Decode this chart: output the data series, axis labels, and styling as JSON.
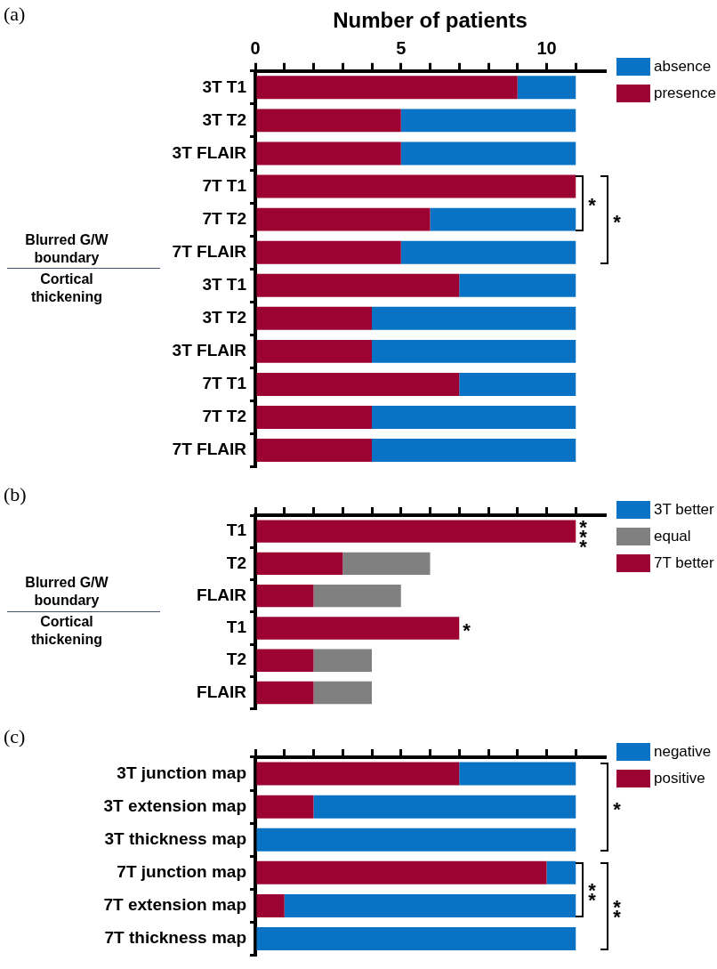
{
  "chart_data": [
    {
      "type": "bar",
      "orientation": "horizontal",
      "stacked": true,
      "xlabel": "Number of patients",
      "legend": "top right",
      "grid": false,
      "categories": [
        "3T T1",
        "3T T2",
        "3T FLAIR",
        "7T T1",
        "7T T2",
        "7T FLAIR",
        "3T T1",
        "3T T2",
        "3T FLAIR",
        "7T T1",
        "7T T2",
        "7T FLAIR"
      ],
      "series": [
        {
          "name": "presence",
          "color": "#9c0333",
          "values": [
            9,
            5,
            5,
            11,
            6,
            5,
            7,
            4,
            4,
            7,
            4,
            4
          ]
        },
        {
          "name": "absence",
          "color": "#0873c4",
          "values": [
            2,
            6,
            6,
            0,
            5,
            6,
            4,
            7,
            7,
            4,
            7,
            7
          ]
        }
      ],
      "xlim": [
        0,
        12
      ],
      "xticks": [
        0,
        {
          "value": 1,
          "label": null
        },
        {
          "value": 2,
          "label": null
        },
        {
          "value": 3,
          "label": null
        },
        {
          "value": 4,
          "label": null
        },
        5,
        {
          "value": 6,
          "label": null
        },
        {
          "value": 7,
          "label": null
        },
        {
          "value": 8,
          "label": null
        },
        {
          "value": 9,
          "label": null
        },
        10,
        {
          "value": 11,
          "label": null
        }
      ],
      "annotations": [
        "(a)",
        "Blurred G/W boundary",
        "Cortical thickening",
        "*",
        "*"
      ]
    },
    {
      "type": "bar",
      "orientation": "horizontal",
      "stacked": true,
      "legend": "top right",
      "grid": false,
      "tick_labels": "y",
      "categories": [
        "T1",
        "T2",
        "FLAIR",
        "T1",
        "T2",
        "FLAIR"
      ],
      "series": [
        {
          "name": "7T better",
          "color": "#9c0333",
          "values": [
            11,
            3,
            2,
            7,
            2,
            2
          ]
        },
        {
          "name": "equal",
          "color": "#808080",
          "values": [
            0,
            3,
            3,
            0,
            2,
            2
          ]
        },
        {
          "name": "3T better",
          "color": "#0873c4",
          "values": [
            0,
            0,
            0,
            0,
            0,
            0
          ]
        }
      ],
      "xlim": [
        0,
        12
      ],
      "xticks": [
        0,
        {
          "value": 1,
          "label": null
        },
        {
          "value": 2,
          "label": null
        },
        {
          "value": 3,
          "label": null
        },
        {
          "value": 4,
          "label": null
        },
        5,
        {
          "value": 6,
          "label": null
        },
        {
          "value": 7,
          "label": null
        },
        {
          "value": 8,
          "label": null
        },
        {
          "value": 9,
          "label": null
        },
        10,
        {
          "value": 11,
          "label": null
        }
      ],
      "annotations": [
        "(b)",
        "Blurred G/W boundary",
        "Cortical thickening",
        "***",
        "*"
      ]
    },
    {
      "type": "bar",
      "orientation": "horizontal",
      "stacked": true,
      "legend": "top right",
      "grid": false,
      "tick_labels": "y",
      "categories": [
        "3T junction map",
        "3T extension map",
        "3T thickness map",
        "7T junction map",
        "7T extension map",
        "7T thickness map"
      ],
      "series": [
        {
          "name": "positive",
          "color": "#9c0333",
          "values": [
            7,
            2,
            0,
            10,
            1,
            0
          ]
        },
        {
          "name": "negative",
          "color": "#0873c4",
          "values": [
            4,
            9,
            11,
            1,
            10,
            11
          ]
        }
      ],
      "xlim": [
        0,
        12
      ],
      "xticks": [
        0,
        {
          "value": 1,
          "label": null
        },
        {
          "value": 2,
          "label": null
        },
        {
          "value": 3,
          "label": null
        },
        {
          "value": 4,
          "label": null
        },
        5,
        {
          "value": 6,
          "label": null
        },
        {
          "value": 7,
          "label": null
        },
        {
          "value": 8,
          "label": null
        },
        {
          "value": 9,
          "label": null
        },
        10,
        {
          "value": 11,
          "label": null
        }
      ],
      "annotations": [
        "(c)",
        "*",
        "**",
        "**"
      ]
    }
  ]
}
